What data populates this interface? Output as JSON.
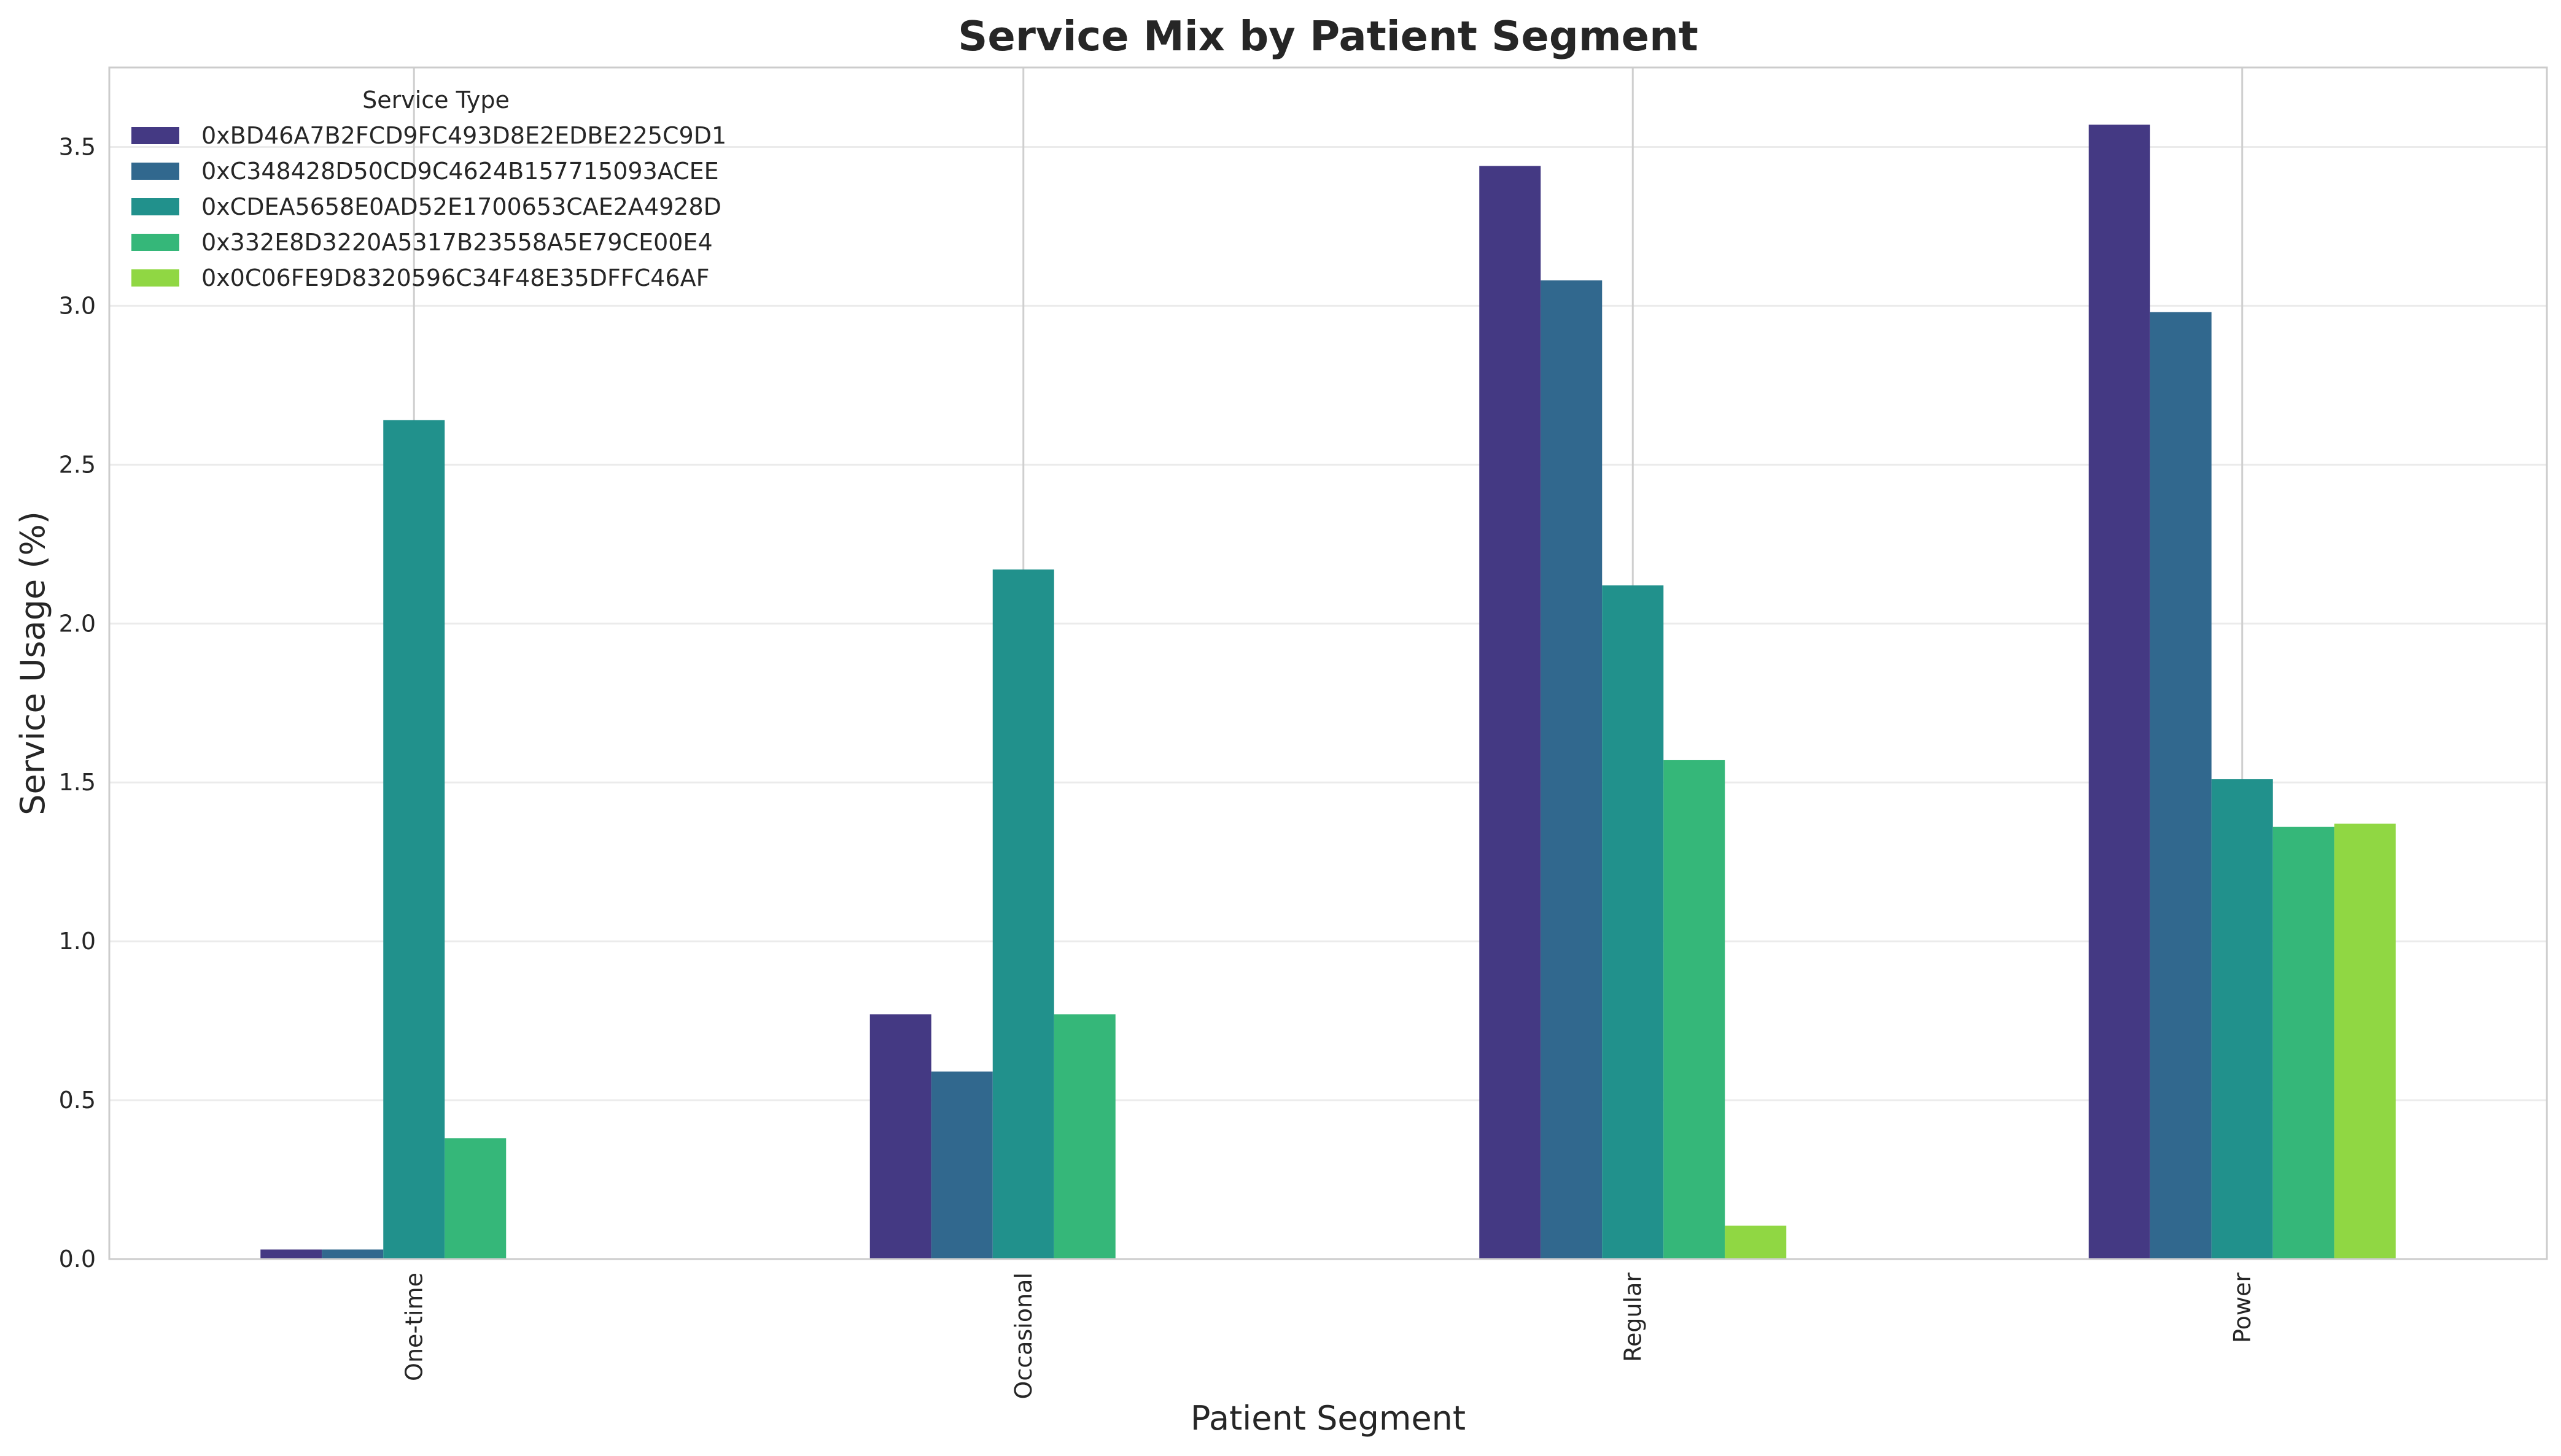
{
  "chart_data": {
    "type": "bar",
    "title": "Service Mix by Patient Segment",
    "xlabel": "Patient Segment",
    "ylabel": "Service Usage (%)",
    "categories": [
      "One-time",
      "Occasional",
      "Regular",
      "Power"
    ],
    "ylim": [
      0,
      3.75
    ],
    "yticks": [
      0.0,
      0.5,
      1.0,
      1.5,
      2.0,
      2.5,
      3.0,
      3.5
    ],
    "ytick_labels": [
      "0.0",
      "0.5",
      "1.0",
      "1.5",
      "2.0",
      "2.5",
      "3.0",
      "3.5"
    ],
    "grid": true,
    "legend_title": "Service Type",
    "legend_position": "upper-left",
    "series": [
      {
        "name": "0xBD46A7B2FCD9FC493D8E2EDBE225C9D1",
        "color": "#443983",
        "values": [
          0.03,
          0.77,
          3.44,
          3.57
        ]
      },
      {
        "name": "0xC348428D50CD9C4624B157715093ACEE",
        "color": "#31688e",
        "values": [
          0.03,
          0.59,
          3.08,
          2.98
        ]
      },
      {
        "name": "0xCDEA5658E0AD52E1700653CAE2A4928D",
        "color": "#21918c",
        "values": [
          2.64,
          2.17,
          2.12,
          1.51
        ]
      },
      {
        "name": "0x332E8D3220A5317B23558A5E79CE00E4",
        "color": "#35b779",
        "values": [
          0.38,
          0.77,
          1.57,
          1.36
        ]
      },
      {
        "name": "0x0C06FE9D8320596C34F48E35DFFC46AF",
        "color": "#90d743",
        "values": [
          0.0,
          0.0,
          0.105,
          1.37
        ]
      }
    ]
  }
}
